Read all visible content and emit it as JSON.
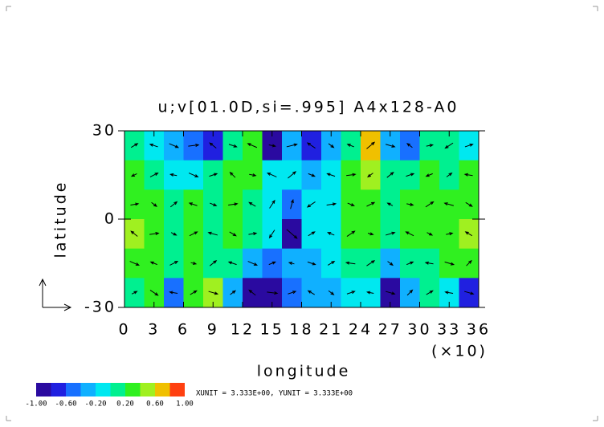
{
  "chart_data": {
    "type": "contour-vector",
    "title": "u;v[01.0D,si=.995] A4x128-A0",
    "x_label": "longitude",
    "x_scale_note": "(×10)",
    "y_label": "latitude",
    "unit_note": "XUNIT = 3.333E+00, YUNIT = 3.333E+00",
    "xlim": [
      0,
      360
    ],
    "ylim": [
      -30,
      30
    ],
    "xticks": [
      0,
      {
        "value": 30,
        "label": "3"
      },
      {
        "value": 60,
        "label": "6"
      },
      {
        "value": 90,
        "label": "9"
      },
      {
        "value": 120,
        "label": "12"
      },
      {
        "value": 150,
        "label": "15"
      },
      {
        "value": 180,
        "label": "18"
      },
      {
        "value": 210,
        "label": "21"
      },
      {
        "value": 240,
        "label": "24"
      },
      {
        "value": 270,
        "label": "27"
      },
      {
        "value": 300,
        "label": "30"
      },
      {
        "value": 330,
        "label": "33"
      },
      {
        "value": 360,
        "label": "36"
      }
    ],
    "yticks": [
      30,
      0,
      -30
    ],
    "x": [
      10,
      30,
      50,
      70,
      90,
      110,
      130,
      150,
      170,
      190,
      210,
      230,
      250,
      270,
      290,
      310,
      330,
      350
    ],
    "y": [
      25,
      15,
      5,
      -5,
      -15,
      -25
    ],
    "z": [
      [
        0.0,
        -0.2,
        -0.4,
        -0.6,
        -0.8,
        0.0,
        0.2,
        -0.9,
        -0.4,
        -0.8,
        -0.3,
        0.1,
        0.6,
        -0.3,
        -0.6,
        0.1,
        0.0,
        -0.2
      ],
      [
        0.2,
        0.1,
        -0.2,
        -0.1,
        0.0,
        0.2,
        0.2,
        -0.2,
        -0.2,
        -0.3,
        -0.1,
        0.2,
        0.4,
        0.0,
        0.0,
        0.3,
        0.1,
        0.2
      ],
      [
        0.3,
        0.2,
        0.1,
        0.2,
        0.1,
        0.2,
        0.1,
        -0.2,
        -0.6,
        -0.2,
        -0.1,
        0.2,
        0.2,
        0.1,
        0.2,
        0.2,
        0.3,
        0.2
      ],
      [
        0.4,
        0.2,
        0.1,
        0.2,
        0.1,
        0.2,
        0.1,
        -0.2,
        -0.9,
        -0.2,
        -0.1,
        0.2,
        0.3,
        0.1,
        0.2,
        0.2,
        0.3,
        0.4
      ],
      [
        0.2,
        0.2,
        0.1,
        0.2,
        0.1,
        0.0,
        -0.3,
        -0.5,
        -0.3,
        -0.4,
        -0.2,
        0.0,
        0.1,
        -0.3,
        0.0,
        0.1,
        0.2,
        0.2
      ],
      [
        0.1,
        0.2,
        -0.5,
        0.2,
        0.5,
        -0.3,
        -0.9,
        -0.9,
        -0.6,
        -0.3,
        -0.3,
        -0.1,
        -0.2,
        -0.9,
        -0.3,
        0.1,
        -0.2,
        -0.8
      ]
    ],
    "u": [
      [
        0.5,
        -0.6,
        0.7,
        0.8,
        -0.5,
        0.6,
        -0.7,
        0.5,
        0.8,
        -0.6,
        0.4,
        -0.5,
        0.6,
        0.7,
        -0.4,
        0.5,
        -0.6,
        0.6
      ],
      [
        -0.4,
        0.6,
        -0.5,
        0.7,
        0.6,
        -0.4,
        0.5,
        -0.7,
        0.6,
        0.5,
        -0.6,
        0.7,
        -0.4,
        0.5,
        0.6,
        -0.5,
        0.4,
        -0.6
      ],
      [
        0.6,
        0.4,
        0.5,
        -0.6,
        0.5,
        0.7,
        -0.5,
        0.4,
        0.2,
        -0.6,
        0.7,
        0.5,
        0.6,
        -0.4,
        0.5,
        0.6,
        -0.7,
        0.5
      ],
      [
        -0.5,
        0.7,
        0.4,
        0.6,
        -0.7,
        0.5,
        0.6,
        -0.4,
        0.8,
        0.5,
        -0.5,
        0.6,
        0.4,
        0.7,
        -0.6,
        0.4,
        0.5,
        -0.5
      ],
      [
        0.7,
        -0.5,
        0.6,
        0.4,
        0.5,
        -0.6,
        0.7,
        0.5,
        -0.4,
        0.6,
        0.5,
        -0.7,
        0.6,
        0.4,
        0.5,
        -0.6,
        0.7,
        0.4
      ],
      [
        0.4,
        0.6,
        -0.6,
        0.5,
        0.7,
        0.4,
        -0.5,
        0.8,
        0.6,
        -0.5,
        0.4,
        0.6,
        -0.5,
        0.7,
        0.4,
        0.5,
        -0.6,
        0.7
      ]
    ],
    "v": [
      [
        0.3,
        0.2,
        -0.3,
        0.1,
        0.4,
        -0.2,
        0.3,
        -0.1,
        0.2,
        0.4,
        -0.3,
        0.2,
        0.5,
        -0.2,
        0.3,
        0.1,
        -0.4,
        0.2
      ],
      [
        -0.2,
        0.3,
        0.1,
        -0.3,
        0.2,
        0.4,
        -0.1,
        0.3,
        0.5,
        -0.2,
        0.2,
        0.1,
        -0.3,
        0.4,
        0.2,
        -0.2,
        0.3,
        0.1
      ],
      [
        0.1,
        -0.3,
        0.4,
        0.2,
        -0.2,
        0.1,
        0.3,
        0.6,
        0.7,
        -0.4,
        0.1,
        -0.2,
        0.3,
        0.2,
        -0.1,
        0.4,
        0.2,
        -0.3
      ],
      [
        0.4,
        0.1,
        -0.2,
        0.3,
        0.2,
        -0.3,
        0.1,
        -0.6,
        -0.7,
        0.3,
        0.2,
        0.4,
        -0.1,
        0.2,
        0.3,
        -0.2,
        0.1,
        0.3
      ],
      [
        -0.3,
        0.2,
        0.3,
        -0.1,
        0.4,
        0.2,
        -0.3,
        0.2,
        0.1,
        -0.2,
        0.3,
        0.1,
        0.4,
        -0.3,
        0.2,
        0.1,
        -0.2,
        0.4
      ],
      [
        0.2,
        -0.4,
        0.1,
        0.3,
        -0.2,
        0.3,
        0.4,
        -0.1,
        0.2,
        0.3,
        -0.3,
        0.2,
        0.1,
        -0.2,
        0.4,
        0.3,
        0.1,
        -0.2
      ]
    ],
    "levels": [
      -1.0,
      -0.8,
      -0.6,
      -0.4,
      -0.2,
      0.0,
      0.2,
      0.4,
      0.6,
      0.8,
      1.0
    ],
    "colors": [
      "#2a0aa0",
      "#2020e0",
      "#1870ff",
      "#10b0ff",
      "#00e8f0",
      "#00f090",
      "#30f020",
      "#a0f020",
      "#f0c000",
      "#ff4010"
    ],
    "level_ticks": [
      {
        "value": -1.0,
        "label": "-1.00"
      },
      {
        "value": -0.6,
        "label": "-0.60"
      },
      {
        "value": -0.2,
        "label": "-0.20"
      },
      {
        "value": 0.2,
        "label": "0.20"
      },
      {
        "value": 0.6,
        "label": "0.60"
      },
      {
        "value": 1.0,
        "label": "1.00"
      }
    ]
  }
}
